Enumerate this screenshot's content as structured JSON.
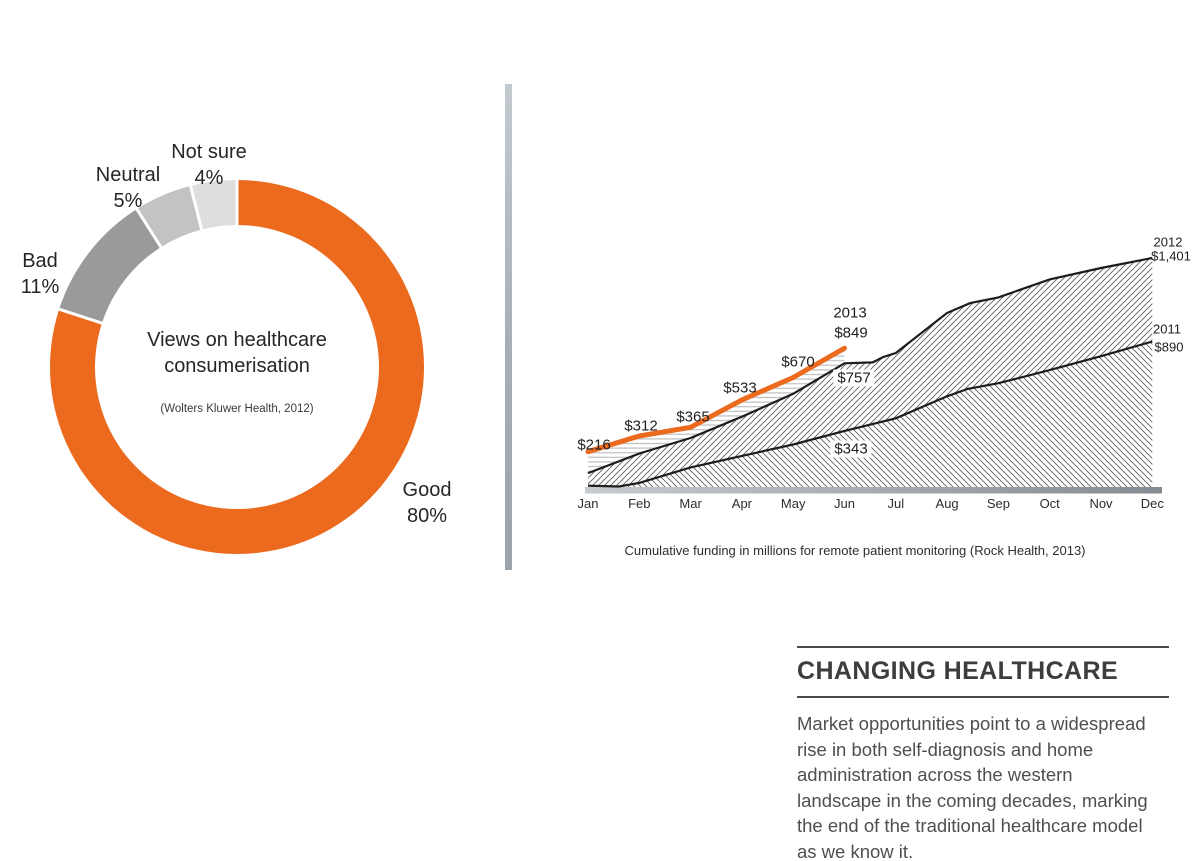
{
  "chart_data": {
    "views": {
      "type": "pie",
      "style": "donut",
      "title_lines": [
        "Views on healthcare",
        "consumerisation"
      ],
      "source": "(Wolters Kluwer Health, 2012)",
      "segments": [
        {
          "label": "Good",
          "display": "80%",
          "value": 80,
          "color": "#EC6A1E"
        },
        {
          "label": "Bad",
          "display": "11%",
          "value": 11,
          "color": "#9A9A9A"
        },
        {
          "label": "Neutral",
          "display": "5%",
          "value": 5,
          "color": "#C3C3C3"
        },
        {
          "label": "Not sure",
          "display": "4%",
          "value": 4,
          "color": "#DEDEDE"
        }
      ]
    },
    "funding": {
      "type": "area",
      "caption": "Cumulative funding in millions for remote patient monitoring (Rock Health, 2013)",
      "categories": [
        "Jan",
        "Feb",
        "Mar",
        "Apr",
        "May",
        "Jun",
        "Jul",
        "Aug",
        "Sep",
        "Oct",
        "Nov",
        "Dec"
      ],
      "unit": "USD millions",
      "ylim": [
        0,
        1450
      ],
      "grid": false,
      "series": [
        {
          "name": "2013",
          "color": "#EC6A1E",
          "hatch": "horizontal",
          "labeled_values": {
            "Jan": 216,
            "Feb": 312,
            "Mar": 365,
            "Apr": 533,
            "May": 670,
            "Jun": 849
          },
          "points": [
            [
              0,
              216
            ],
            [
              1,
              312
            ],
            [
              2,
              365
            ],
            [
              3,
              533
            ],
            [
              4,
              670
            ],
            [
              5,
              849
            ]
          ]
        },
        {
          "name": "2012",
          "color": "#1c1c1c",
          "hatch": "diag-up",
          "labeled_values": {
            "Jun": 757,
            "Dec": 1401
          },
          "points": [
            [
              0,
              85
            ],
            [
              1,
              205
            ],
            [
              2,
              300
            ],
            [
              3,
              430
            ],
            [
              4,
              570
            ],
            [
              5,
              757
            ],
            [
              5.55,
              762
            ],
            [
              5.75,
              795
            ],
            [
              6,
              820
            ],
            [
              7,
              1065
            ],
            [
              7.45,
              1125
            ],
            [
              8,
              1160
            ],
            [
              9,
              1270
            ],
            [
              10,
              1340
            ],
            [
              11,
              1401
            ]
          ]
        },
        {
          "name": "2011",
          "color": "#1c1c1c",
          "hatch": "diag-down",
          "labeled_values": {
            "Jun": 343,
            "Dec": 890
          },
          "points": [
            [
              0,
              8
            ],
            [
              0.6,
              3
            ],
            [
              1,
              25
            ],
            [
              2,
              120
            ],
            [
              3,
              190
            ],
            [
              4,
              260
            ],
            [
              5,
              343
            ],
            [
              6,
              420
            ],
            [
              7,
              555
            ],
            [
              7.4,
              600
            ],
            [
              8,
              635
            ],
            [
              9,
              715
            ],
            [
              10,
              800
            ],
            [
              11,
              890
            ]
          ]
        }
      ],
      "annotations": [
        "$216",
        "$312",
        "$365",
        "$533",
        "$670",
        "2013",
        "$849",
        "$757",
        "$343",
        "2012",
        "$1,401",
        "2011",
        "$890"
      ]
    }
  },
  "divider": {
    "color_top": "#c3cacf",
    "color_bottom": "#9ba4ab"
  },
  "text_block": {
    "heading": "CHANGING HEALTHCARE",
    "body_lines": [
      "Market opportunities point to a widespread",
      "rise in both self-diagnosis and home",
      "administration across the western",
      "landscape in the coming decades, marking",
      "the end of the traditional healthcare model",
      "as we know it."
    ]
  }
}
